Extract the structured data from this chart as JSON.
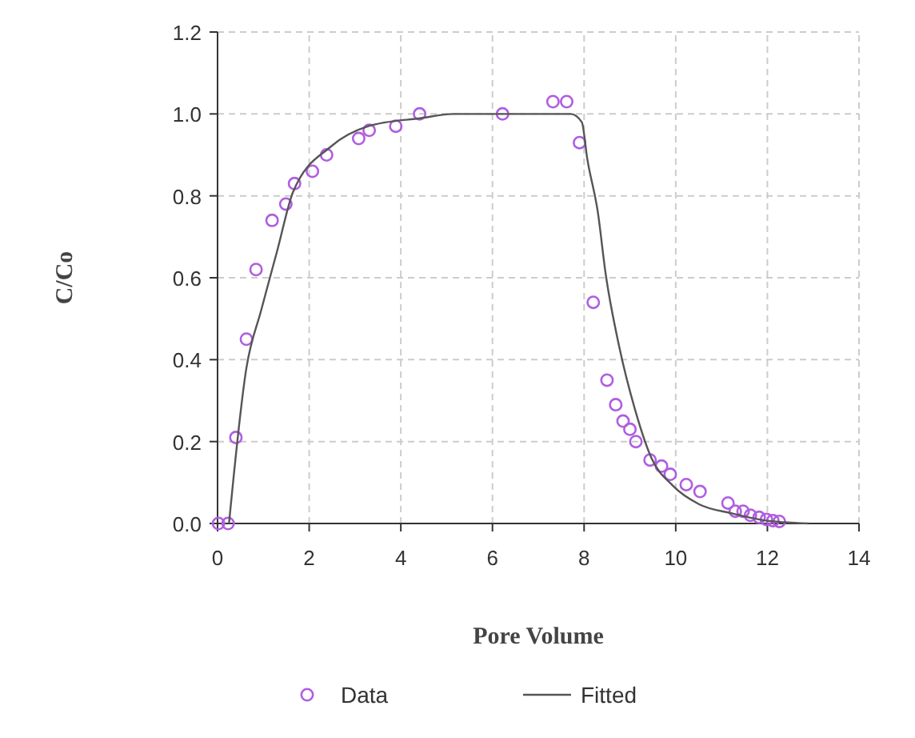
{
  "chart_data": {
    "type": "scatter",
    "xlabel": "Pore Volume",
    "ylabel": "C/Co",
    "xlim": [
      0,
      14
    ],
    "ylim": [
      0,
      1.2
    ],
    "xticks": [
      0,
      2,
      4,
      6,
      8,
      10,
      12,
      14
    ],
    "yticks": [
      {
        "value": 0,
        "label": "0.0"
      },
      {
        "value": 0.2,
        "label": "0.2"
      },
      {
        "value": 0.4,
        "label": "0.4"
      },
      {
        "value": 0.6,
        "label": "0.6"
      },
      {
        "value": 0.8,
        "label": "0.8"
      },
      {
        "value": 1,
        "label": "1.0"
      },
      {
        "value": 1.2,
        "label": "1.2"
      }
    ],
    "grid": true,
    "legend": "bottom",
    "series": [
      {
        "name": "Data",
        "marker": "circle",
        "color": "#b05ee0",
        "x": [
          0.02,
          0.23,
          0.4,
          0.63,
          0.84,
          1.19,
          1.49,
          1.68,
          2.07,
          2.38,
          3.08,
          3.31,
          3.89,
          4.41,
          6.22,
          7.32,
          7.62,
          7.9,
          8.2,
          8.5,
          8.69,
          8.85,
          9.0,
          9.13,
          9.44,
          9.69,
          9.88,
          10.23,
          10.53,
          11.14,
          11.3,
          11.47,
          11.63,
          11.82,
          11.98,
          12.12,
          12.26
        ],
        "values": [
          0,
          0,
          0.21,
          0.45,
          0.62,
          0.74,
          0.78,
          0.83,
          0.86,
          0.9,
          0.94,
          0.96,
          0.97,
          1.0,
          1.0,
          1.03,
          1.03,
          0.93,
          0.54,
          0.35,
          0.29,
          0.25,
          0.23,
          0.2,
          0.155,
          0.14,
          0.12,
          0.095,
          0.078,
          0.05,
          0.03,
          0.03,
          0.02,
          0.015,
          0.01,
          0.007,
          0.005
        ]
      },
      {
        "name": "Fitted",
        "type": "line",
        "line_style": "solid",
        "marker": "none",
        "color": "#555555",
        "x": [
          0.25,
          0.63,
          0.95,
          1.3,
          1.65,
          2.47,
          3.29,
          4.45,
          5.15,
          7.71,
          7.95,
          8.07,
          8.3,
          8.47,
          8.77,
          9.12,
          9.47,
          9.93,
          10.51,
          11.21,
          11.91,
          12.9
        ],
        "values": [
          0,
          0.38,
          0.52,
          0.665,
          0.81,
          0.92,
          0.97,
          0.99,
          1.0,
          1.0,
          0.98,
          0.89,
          0.76,
          0.61,
          0.43,
          0.275,
          0.16,
          0.093,
          0.047,
          0.025,
          0.008,
          0
        ]
      }
    ]
  }
}
